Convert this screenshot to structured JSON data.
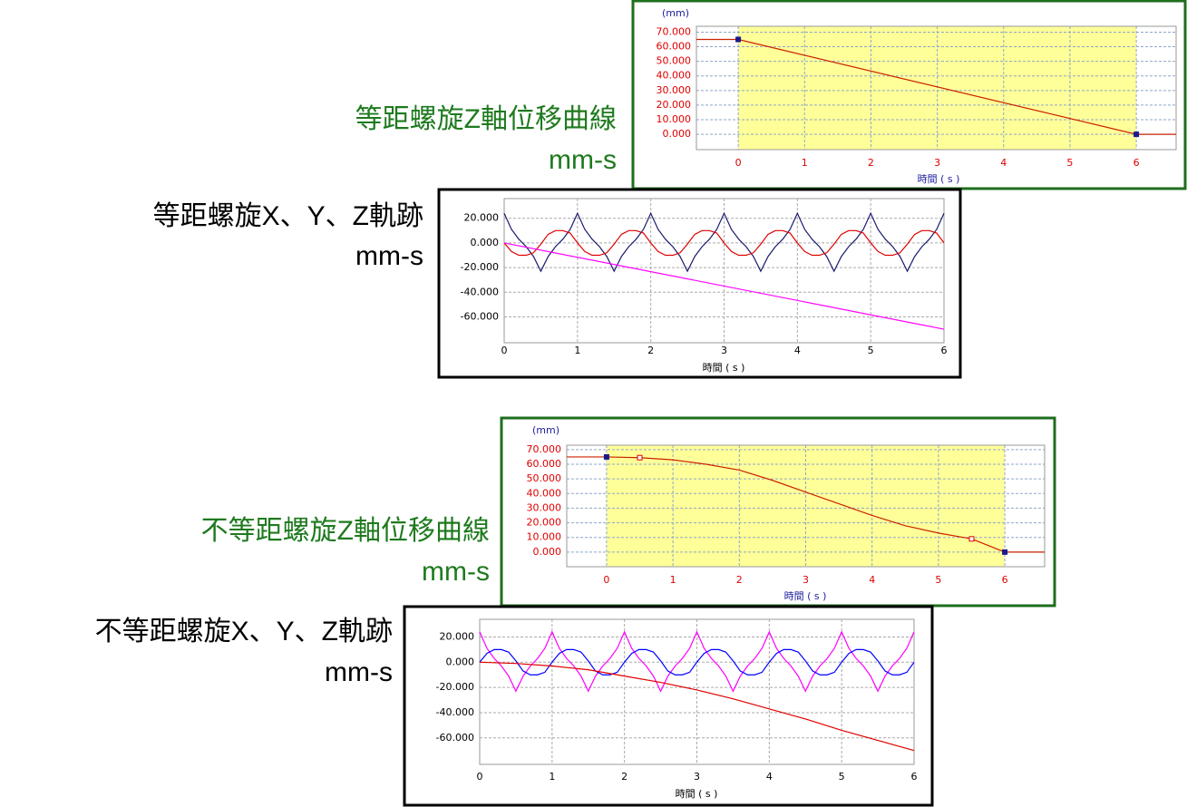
{
  "chart_data": [
    {
      "type": "line",
      "title": "等距螺旋Z軸位移曲線",
      "subtitle": "mm-s",
      "title_color": "#1e7a1e",
      "ylabel": "(mm)",
      "xlabel": "時間 ( s )",
      "label_color": "#2020a0",
      "tick_color": "#e00000",
      "xlim": [
        -0.63,
        6.6
      ],
      "ylim": [
        -10.5,
        74
      ],
      "xticks": [
        0,
        1,
        2,
        3,
        4,
        5,
        6
      ],
      "yticks": [
        {
          "value": 0,
          "label": "0.000"
        },
        {
          "value": 10,
          "label": "10.000"
        },
        {
          "value": 20,
          "label": "20.000"
        },
        {
          "value": 30,
          "label": "30.000"
        },
        {
          "value": 40,
          "label": "40.000"
        },
        {
          "value": 50,
          "label": "50.000"
        },
        {
          "value": 60,
          "label": "60.000"
        },
        {
          "value": 70,
          "label": "70.000"
        }
      ],
      "grid": true,
      "grid_color": "#8fa6c8",
      "highlight": [
        0,
        6
      ],
      "highlight_color": "#ffff99",
      "frame_color": "#1e6e1e",
      "series": [
        {
          "color": "#cc2200",
          "x": [
            -0.63,
            0,
            6,
            6.6
          ],
          "values": [
            65,
            65,
            0,
            0
          ]
        },
        {
          "color": "#1a1a8c",
          "marker": "square",
          "x": [
            0,
            6
          ],
          "values": [
            65,
            0
          ]
        }
      ]
    },
    {
      "type": "line",
      "title": "等距螺旋X、Y、Z軌跡",
      "subtitle": "mm-s",
      "title_color": "#000000",
      "xlabel": "時間 ( s )",
      "label_color": "#000000",
      "tick_color": "#000000",
      "xlim": [
        0,
        6
      ],
      "ylim": [
        -81,
        36
      ],
      "xticks": [
        0,
        1,
        2,
        3,
        4,
        5,
        6
      ],
      "yticks": [
        {
          "value": 20,
          "label": "20.000"
        },
        {
          "value": 0,
          "label": "0.000"
        },
        {
          "value": -20,
          "label": "-20.000"
        },
        {
          "value": -40,
          "label": "-40.000"
        },
        {
          "value": -60,
          "label": "-60.000"
        }
      ],
      "grid": true,
      "grid_color": "#aaaaaa",
      "frame_color": "#000000",
      "x": [
        0,
        0.1,
        0.2,
        0.3,
        0.4,
        0.5,
        0.6,
        0.7,
        0.8,
        0.9,
        1,
        1.1,
        1.2,
        1.3,
        1.4,
        1.5,
        1.6,
        1.7,
        1.8,
        1.9,
        2,
        2.1,
        2.2,
        2.3,
        2.4,
        2.5,
        2.6,
        2.7,
        2.8,
        2.9,
        3,
        3.1,
        3.2,
        3.3,
        3.4,
        3.5,
        3.6,
        3.7,
        3.8,
        3.9,
        4,
        4.1,
        4.2,
        4.3,
        4.4,
        4.5,
        4.6,
        4.7,
        4.8,
        4.9,
        5,
        5.1,
        5.2,
        5.3,
        5.4,
        5.5,
        5.6,
        5.7,
        5.8,
        5.9,
        6
      ],
      "series": [
        {
          "color": "#1a1a6e",
          "values": [
            24,
            11,
            3,
            -3,
            -11,
            -23,
            -11,
            -3,
            3,
            11,
            24,
            11,
            3,
            -3,
            -11,
            -23,
            -11,
            -3,
            3,
            11,
            24,
            11,
            3,
            -3,
            -11,
            -23,
            -11,
            -3,
            3,
            11,
            24,
            11,
            3,
            -3,
            -11,
            -23,
            -11,
            -3,
            3,
            11,
            24,
            11,
            3,
            -3,
            -11,
            -23,
            -11,
            -3,
            3,
            11,
            24,
            11,
            3,
            -3,
            -11,
            -23,
            -11,
            -3,
            3,
            11,
            24
          ]
        },
        {
          "color": "#e00000",
          "values": [
            0,
            -7,
            -10,
            -10,
            -8,
            -1,
            7,
            10,
            10,
            8,
            0,
            -7,
            -10,
            -10,
            -8,
            -1,
            7,
            10,
            10,
            8,
            0,
            -7,
            -10,
            -10,
            -8,
            -1,
            7,
            10,
            10,
            8,
            0,
            -7,
            -10,
            -10,
            -8,
            -1,
            7,
            10,
            10,
            8,
            0,
            -7,
            -10,
            -10,
            -8,
            -1,
            7,
            10,
            10,
            8,
            0,
            -7,
            -10,
            -10,
            -8,
            -1,
            7,
            10,
            10,
            8,
            0
          ]
        },
        {
          "color": "#ff00ff",
          "x": [
            0,
            6
          ],
          "values": [
            0,
            -70
          ]
        }
      ]
    },
    {
      "type": "line",
      "title": "不等距螺旋Z軸位移曲線",
      "subtitle": "mm-s",
      "title_color": "#1e7a1e",
      "ylabel": "(mm)",
      "xlabel": "時間 ( s )",
      "label_color": "#2020a0",
      "tick_color": "#e00000",
      "xlim": [
        -0.6,
        6.6
      ],
      "ylim": [
        -10,
        73
      ],
      "xticks": [
        0,
        1,
        2,
        3,
        4,
        5,
        6
      ],
      "yticks": [
        {
          "value": 0,
          "label": "0.000"
        },
        {
          "value": 10,
          "label": "10.000"
        },
        {
          "value": 20,
          "label": "20.000"
        },
        {
          "value": 30,
          "label": "30.000"
        },
        {
          "value": 40,
          "label": "40.000"
        },
        {
          "value": 50,
          "label": "50.000"
        },
        {
          "value": 60,
          "label": "60.000"
        },
        {
          "value": 70,
          "label": "70.000"
        }
      ],
      "grid": true,
      "grid_color": "#8fa6c8",
      "highlight": [
        0,
        6
      ],
      "highlight_color": "#ffff99",
      "frame_color": "#1e6e1e",
      "series": [
        {
          "color": "#cc2200",
          "x": [
            -0.6,
            0,
            0.5,
            1,
            1.5,
            2,
            2.5,
            3,
            3.5,
            4,
            4.5,
            5,
            5.5,
            6,
            6.6
          ],
          "values": [
            65,
            65,
            64.5,
            63,
            60,
            56,
            49,
            41,
            33,
            25,
            18,
            13,
            9,
            0,
            0
          ]
        },
        {
          "color": "#1a1a8c",
          "marker": "square",
          "x": [
            0,
            6
          ],
          "values": [
            65,
            0
          ]
        },
        {
          "color": "#e00000",
          "marker": "square",
          "x": [
            0.5,
            5.5
          ],
          "values": [
            64.5,
            9
          ]
        }
      ]
    },
    {
      "type": "line",
      "title": "不等距螺旋X、Y、Z軌跡",
      "subtitle": "mm-s",
      "title_color": "#000000",
      "xlabel": "時間 ( s )",
      "label_color": "#000000",
      "tick_color": "#000000",
      "xlim": [
        0,
        6
      ],
      "ylim": [
        -81,
        34
      ],
      "xticks": [
        0,
        1,
        2,
        3,
        4,
        5,
        6
      ],
      "yticks": [
        {
          "value": 20,
          "label": "20.000"
        },
        {
          "value": 0,
          "label": "0.000"
        },
        {
          "value": -20,
          "label": "-20.000"
        },
        {
          "value": -40,
          "label": "-40.000"
        },
        {
          "value": -60,
          "label": "-60.000"
        }
      ],
      "grid": true,
      "grid_color": "#aaaaaa",
      "frame_color": "#000000",
      "x": [
        0,
        0.1,
        0.2,
        0.3,
        0.4,
        0.5,
        0.6,
        0.7,
        0.8,
        0.9,
        1,
        1.1,
        1.2,
        1.3,
        1.4,
        1.5,
        1.6,
        1.7,
        1.8,
        1.9,
        2,
        2.1,
        2.2,
        2.3,
        2.4,
        2.5,
        2.6,
        2.7,
        2.8,
        2.9,
        3,
        3.1,
        3.2,
        3.3,
        3.4,
        3.5,
        3.6,
        3.7,
        3.8,
        3.9,
        4,
        4.1,
        4.2,
        4.3,
        4.4,
        4.5,
        4.6,
        4.7,
        4.8,
        4.9,
        5,
        5.1,
        5.2,
        5.3,
        5.4,
        5.5,
        5.6,
        5.7,
        5.8,
        5.9,
        6
      ],
      "series": [
        {
          "color": "#ff00ff",
          "values": [
            24,
            11,
            3,
            -3,
            -11,
            -23,
            -11,
            -3,
            3,
            11,
            24,
            11,
            3,
            -3,
            -11,
            -23,
            -11,
            -3,
            3,
            11,
            24,
            11,
            3,
            -3,
            -11,
            -23,
            -11,
            -3,
            3,
            11,
            24,
            11,
            3,
            -3,
            -11,
            -23,
            -11,
            -3,
            3,
            11,
            24,
            11,
            3,
            -3,
            -11,
            -23,
            -11,
            -3,
            3,
            11,
            24,
            11,
            3,
            -3,
            -11,
            -23,
            -11,
            -3,
            3,
            11,
            24
          ]
        },
        {
          "color": "#0000ff",
          "values": [
            0,
            7,
            10,
            10,
            8,
            1,
            -7,
            -10,
            -10,
            -8,
            0,
            7,
            10,
            10,
            8,
            1,
            -7,
            -10,
            -10,
            -8,
            0,
            7,
            10,
            10,
            8,
            1,
            -7,
            -10,
            -10,
            -8,
            0,
            7,
            10,
            10,
            8,
            1,
            -7,
            -10,
            -10,
            -8,
            0,
            7,
            10,
            10,
            8,
            1,
            -7,
            -10,
            -10,
            -8,
            0,
            7,
            10,
            10,
            8,
            1,
            -7,
            -10,
            -10,
            -8,
            0
          ]
        },
        {
          "color": "#e00000",
          "x": [
            0,
            0.5,
            1,
            1.5,
            2,
            2.5,
            3,
            3.5,
            4,
            4.5,
            5,
            5.5,
            6
          ],
          "values": [
            0,
            -1,
            -3,
            -6,
            -11,
            -16,
            -22,
            -29,
            -37,
            -45,
            -54,
            -62,
            -70
          ]
        }
      ]
    }
  ]
}
